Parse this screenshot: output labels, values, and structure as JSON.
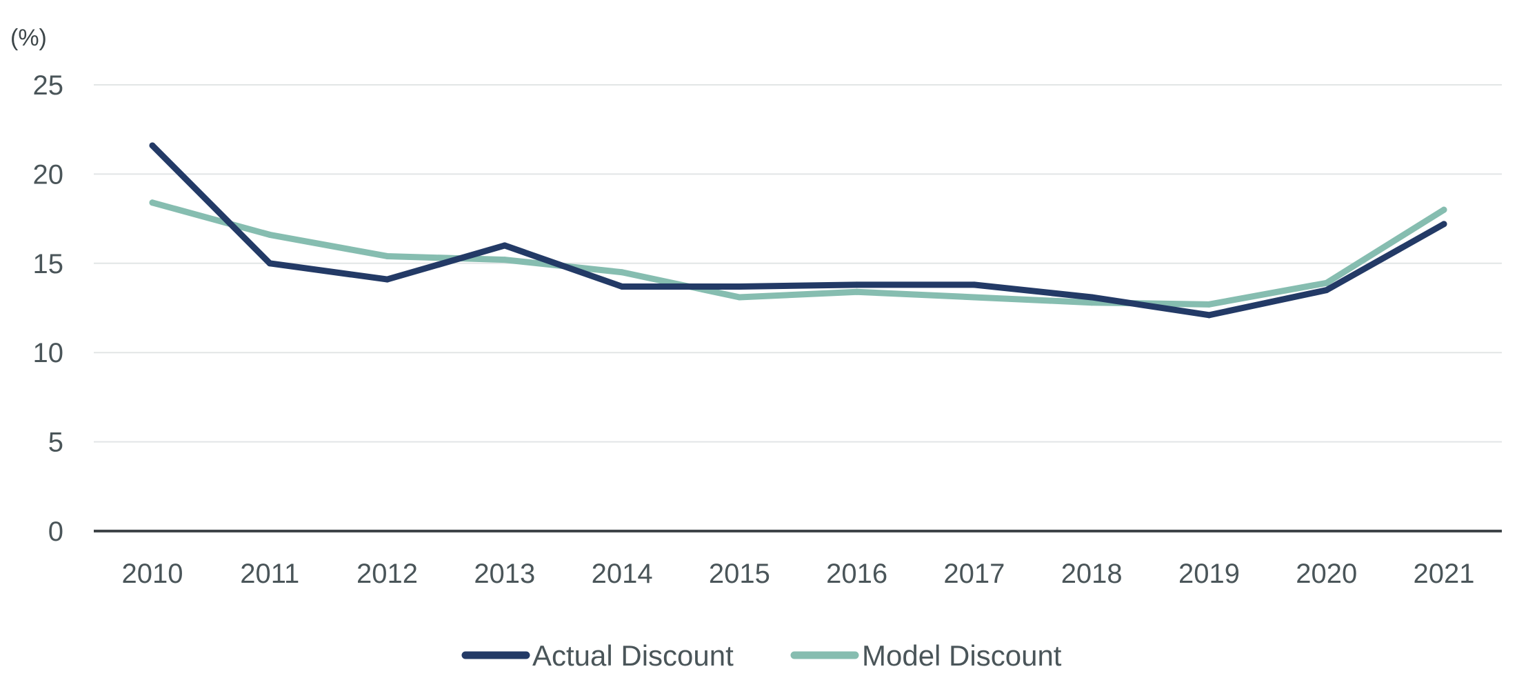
{
  "chart_data": {
    "type": "line",
    "y_unit_label": "(%)",
    "x": [
      "2010",
      "2011",
      "2012",
      "2013",
      "2014",
      "2015",
      "2016",
      "2017",
      "2018",
      "2019",
      "2020",
      "2021"
    ],
    "series": [
      {
        "name": "Actual Discount",
        "color": "#233a66",
        "values": [
          21.6,
          15.0,
          14.1,
          16.0,
          13.7,
          13.7,
          13.8,
          13.8,
          13.1,
          12.1,
          13.5,
          17.2
        ]
      },
      {
        "name": "Model Discount",
        "color": "#86bdb0",
        "values": [
          18.4,
          16.6,
          15.4,
          15.2,
          14.5,
          13.1,
          13.4,
          13.1,
          12.8,
          12.7,
          13.9,
          18.0
        ]
      }
    ],
    "ylim": [
      0,
      25
    ],
    "y_ticks": [
      "0",
      "5",
      "10",
      "15",
      "20",
      "25"
    ],
    "grid": true,
    "legend_position": "bottom-center",
    "colors": {
      "gridline": "#e2e5e6",
      "axis": "#3f4548",
      "text": "#4a5559"
    }
  }
}
